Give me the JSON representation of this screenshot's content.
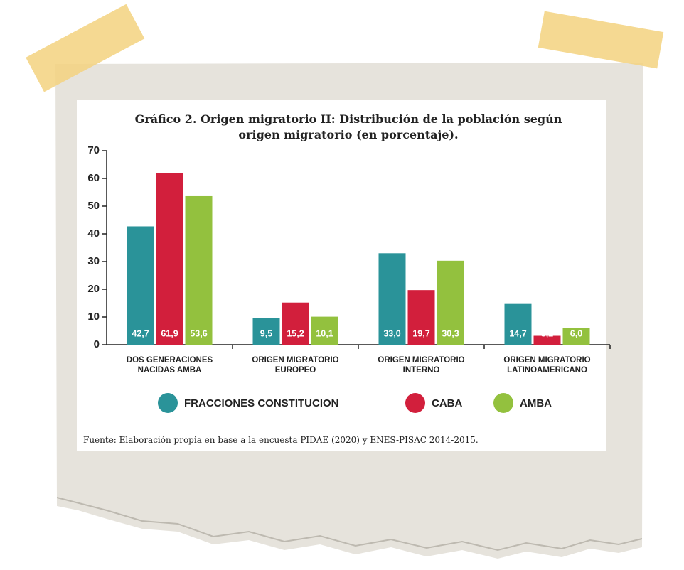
{
  "chart_data": {
    "type": "bar",
    "title": "Gráfico 2. Origen migratorio II: Distribución de la población según origen migratorio (en porcentaje).",
    "categories": [
      "DOS GENERACIONES NACIDAS AMBA",
      "ORIGEN MIGRATORIO EUROPEO",
      "ORIGEN MIGRATORIO INTERNO",
      "ORIGEN MIGRATORIO LATINOAMERICANO"
    ],
    "series": [
      {
        "name": "FRACCIONES CONSTITUCION",
        "color": "#2a9399",
        "values": [
          42.7,
          9.5,
          33.0,
          14.7
        ],
        "value_labels": [
          "42,7",
          "9,5",
          "33,0",
          "14,7"
        ]
      },
      {
        "name": "CABA",
        "color": "#d21f3c",
        "values": [
          61.9,
          15.2,
          19.7,
          3.2
        ],
        "value_labels": [
          "61,9",
          "15,2",
          "19,7",
          "3,2"
        ]
      },
      {
        "name": "AMBA",
        "color": "#93c13e",
        "values": [
          53.6,
          10.1,
          30.3,
          6.0
        ],
        "value_labels": [
          "53,6",
          "10,1",
          "30,3",
          "6,0"
        ]
      }
    ],
    "ylim": [
      0,
      70
    ],
    "yticks": [
      0,
      10,
      20,
      30,
      40,
      50,
      60,
      70
    ],
    "grid": false,
    "source": "Fuente: Elaboración propia en base a la encuesta PIDAE (2020) y ENES-PISAC 2014-2015."
  }
}
